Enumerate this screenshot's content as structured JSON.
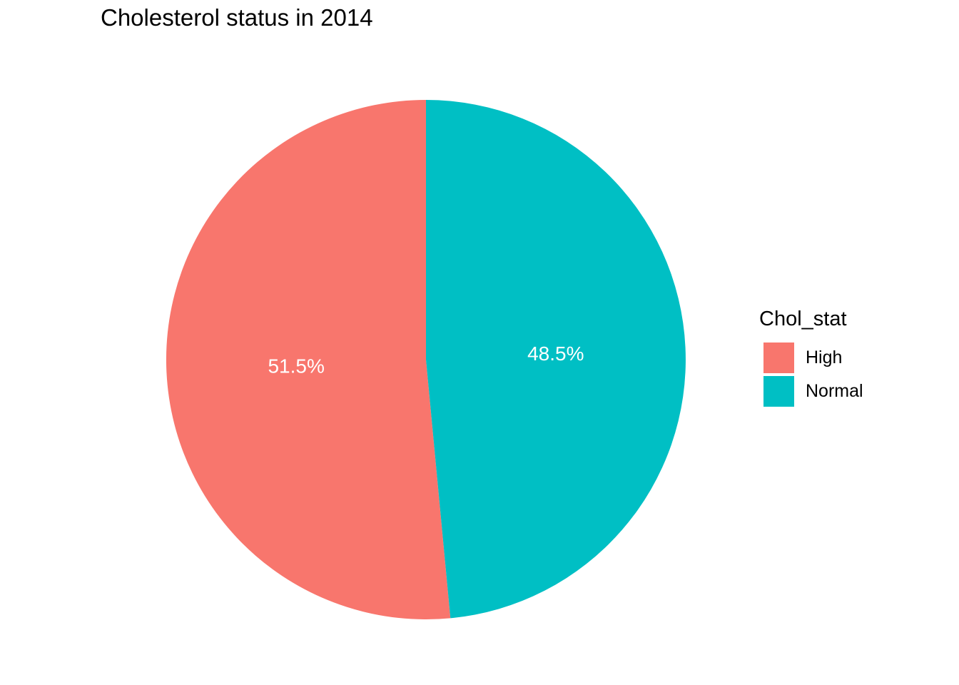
{
  "chart_data": {
    "type": "pie",
    "title": "Cholesterol status in 2014",
    "categories": [
      "High",
      "Normal"
    ],
    "values": [
      51.5,
      48.5
    ],
    "slice_labels": [
      "51.5%",
      "48.5%"
    ],
    "colors": [
      "#F8766D",
      "#00BFC4"
    ],
    "start_angle_deg": 0,
    "direction": "counterclockwise",
    "label_radius_fraction": 0.5,
    "label_color": "#FFFFFF",
    "legend_title": "Chol_stat",
    "legend_position": "right",
    "grid": false,
    "background": "#FFFFFF"
  },
  "legend": {
    "title": "Chol_stat",
    "items": [
      {
        "label": "High",
        "color": "#F8766D"
      },
      {
        "label": "Normal",
        "color": "#00BFC4"
      }
    ]
  }
}
